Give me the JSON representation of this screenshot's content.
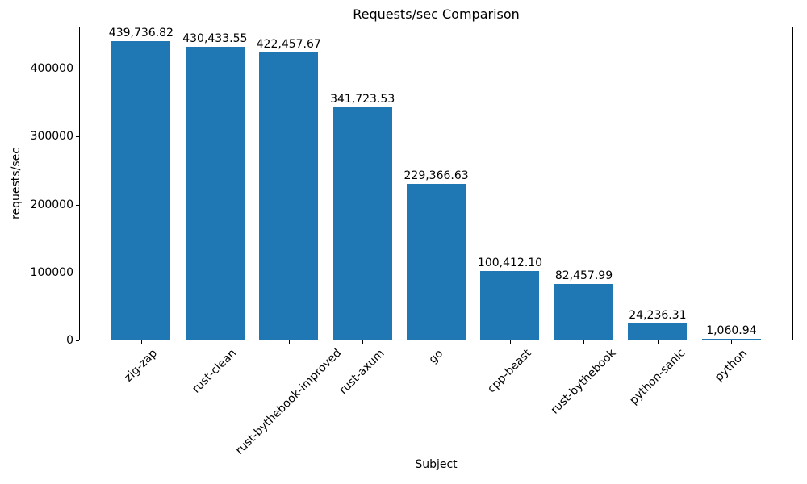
{
  "chart_data": {
    "type": "bar",
    "title": "Requests/sec Comparison",
    "xlabel": "Subject",
    "ylabel": "requests/sec",
    "categories": [
      "zig-zap",
      "rust-clean",
      "rust-bythebook-improved",
      "rust-axum",
      "go",
      "cpp-beast",
      "rust-bythebook",
      "python-sanic",
      "python"
    ],
    "values": [
      439736.82,
      430433.55,
      422457.67,
      341723.53,
      229366.63,
      100412.1,
      82457.99,
      24236.31,
      1060.94
    ],
    "value_labels": [
      "439,736.82",
      "430,433.55",
      "422,457.67",
      "341,723.53",
      "229,366.63",
      "100,412.10",
      "82,457.99",
      "24,236.31",
      "1,060.94"
    ],
    "yticks": [
      0,
      100000,
      200000,
      300000,
      400000
    ],
    "ytick_labels": [
      "0",
      "100000",
      "200000",
      "300000",
      "400000"
    ],
    "ylim": [
      0,
      461724
    ],
    "bar_color": "#1f77b4",
    "grid": false,
    "legend": null,
    "x_tick_rotation": 45
  }
}
